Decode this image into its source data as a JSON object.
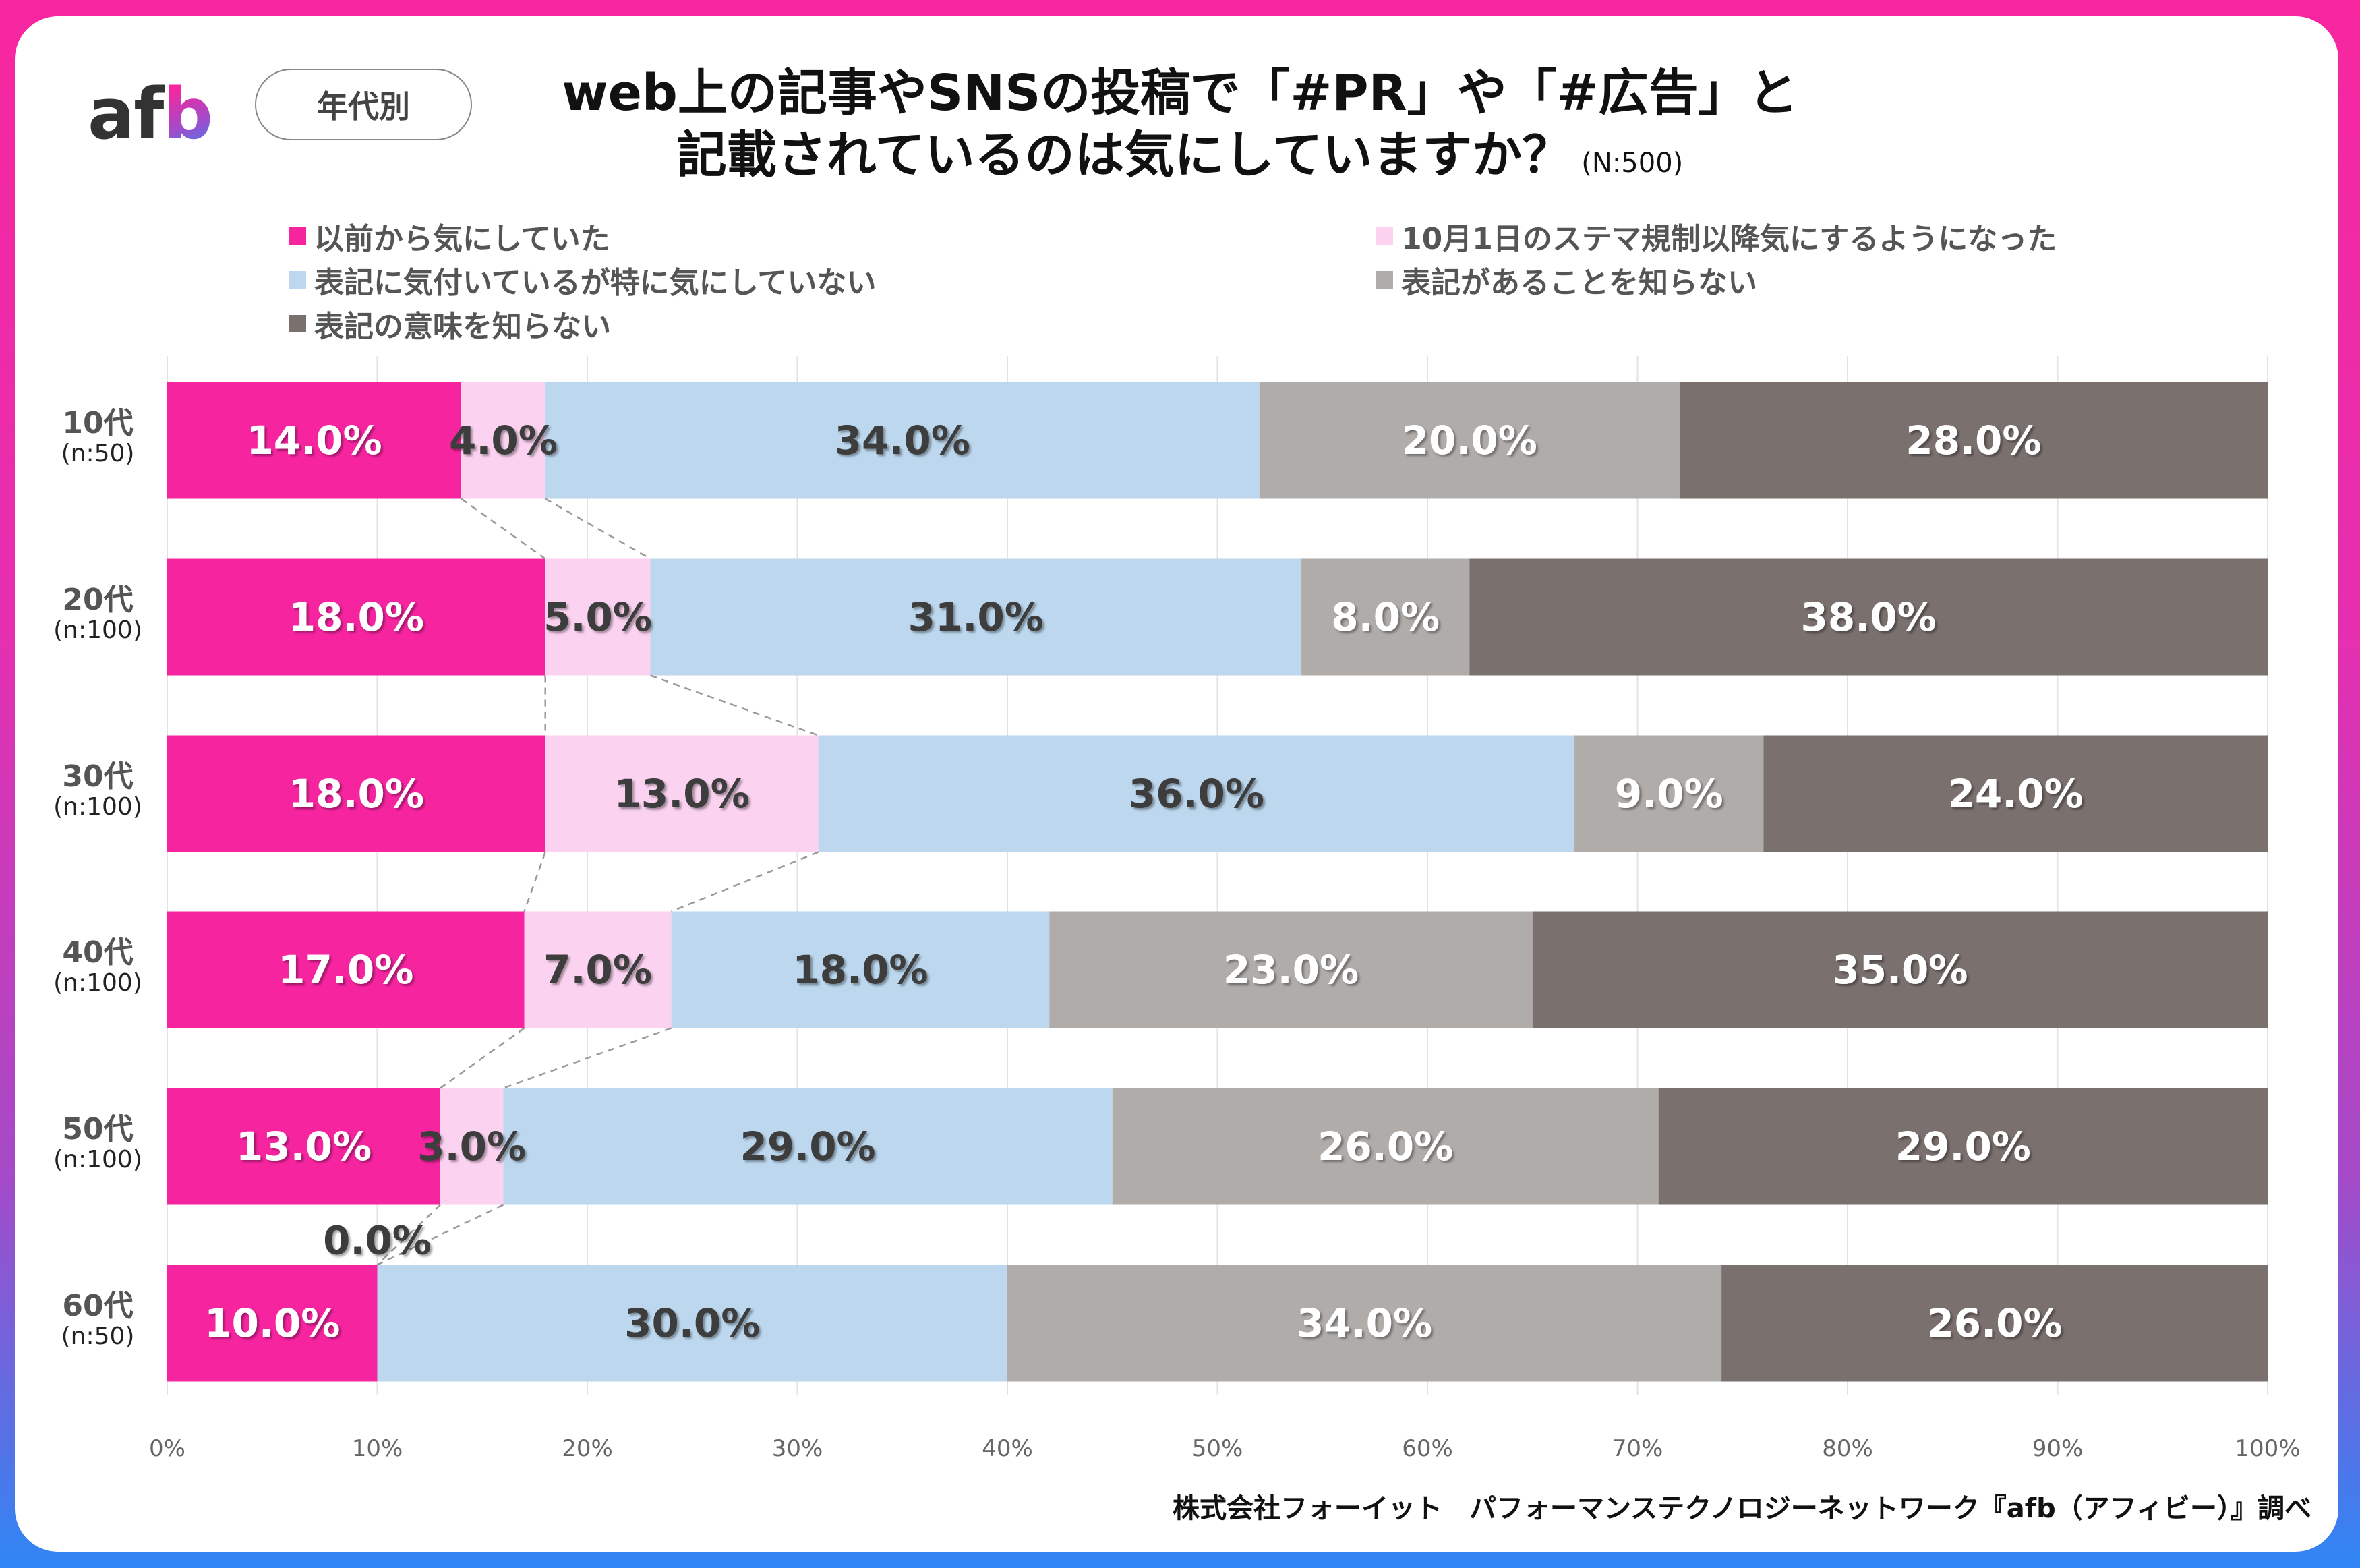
{
  "header": {
    "logo_prefix": "af",
    "logo_suffix": "b",
    "segment_badge": "年代別",
    "title_line1": "web上の記事やSNSの投稿で「#PR」や「#広告」と",
    "title_line2": "記載されているのは気にしていますか？",
    "sample_size": "(N:500)"
  },
  "footer": {
    "source": "株式会社フォーイット　パフォーマンステクノロジーネットワーク『afb（アフィビー）』調べ"
  },
  "colors": {
    "frame_top": "#f7269f",
    "frame_bottom": "#2f86f5",
    "series": [
      "#f724a0",
      "#fbd2f0",
      "#bcd7ee",
      "#b0acaa",
      "#7a706e"
    ],
    "label_dark": "#3c3c3c",
    "label_light": "#ffffff"
  },
  "chart_data": {
    "type": "bar",
    "orientation": "horizontal",
    "stacked": "percent",
    "title": "web上の記事やSNSの投稿で「#PR」や「#広告」と記載されているのは気にしていますか？ (N:500)",
    "xlabel": "",
    "ylabel": "",
    "xlim": [
      0,
      100
    ],
    "x_ticks": [
      "0%",
      "10%",
      "20%",
      "30%",
      "40%",
      "50%",
      "60%",
      "70%",
      "80%",
      "90%",
      "100%"
    ],
    "grid": true,
    "legend_position": "top",
    "categories": [
      {
        "label": "10代",
        "n": "(n:50)"
      },
      {
        "label": "20代",
        "n": "(n:100)"
      },
      {
        "label": "30代",
        "n": "(n:100)"
      },
      {
        "label": "40代",
        "n": "(n:100)"
      },
      {
        "label": "50代",
        "n": "(n:100)"
      },
      {
        "label": "60代",
        "n": "(n:50)"
      }
    ],
    "series": [
      {
        "name": "以前から気にしていた",
        "values": [
          14.0,
          18.0,
          18.0,
          17.0,
          13.0,
          10.0
        ]
      },
      {
        "name": "10月1日のステマ規制以降気にするようになった",
        "values": [
          4.0,
          5.0,
          13.0,
          7.0,
          3.0,
          0.0
        ]
      },
      {
        "name": "表記に気付いているが特に気にしていない",
        "values": [
          34.0,
          31.0,
          36.0,
          18.0,
          29.0,
          30.0
        ]
      },
      {
        "name": "表記があることを知らない",
        "values": [
          20.0,
          8.0,
          9.0,
          23.0,
          26.0,
          34.0
        ]
      },
      {
        "name": "表記の意味を知らない",
        "values": [
          28.0,
          38.0,
          24.0,
          35.0,
          29.0,
          26.0
        ]
      }
    ],
    "label_format": "{v}%",
    "connector_lines": "dashed lines linking the start and end boundaries of series 2 between adjacent rows"
  }
}
